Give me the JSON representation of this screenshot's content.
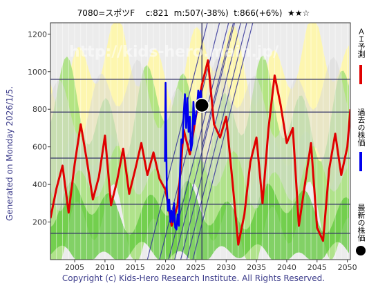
{
  "header": {
    "code_name": "7080=スポツF",
    "current": "c:821",
    "mid": "m:507(-38%)",
    "target": "t:866(+6%)",
    "rating": "★★☆"
  },
  "sidebar": {
    "generated": "Generated on Monday 2026/1/5."
  },
  "legend": {
    "items": [
      {
        "label": "ＡＩ予測",
        "color": "#e00000"
      },
      {
        "label": "過去の株価",
        "color": "#0000ee"
      },
      {
        "label": "最新の株価",
        "color": "#000000"
      }
    ]
  },
  "watermark": {
    "text": "http://kids-hero.main.jp/"
  },
  "footer": {
    "copyright": "Copyright (c) Kids-Hero Research Institute. All Rights Reserved."
  },
  "chart_data": {
    "type": "line",
    "xlim": [
      2001,
      2050.5
    ],
    "ylim": [
      0,
      1260
    ],
    "x_ticks": [
      2005,
      2010,
      2015,
      2020,
      2025,
      2030,
      2035,
      2040,
      2045,
      2050
    ],
    "y_ticks": [
      200,
      400,
      600,
      800,
      1000,
      1200
    ],
    "horizontal_levels": [
      140,
      295,
      540,
      785,
      960
    ],
    "current_marker": {
      "x": 2026.0,
      "y": 821
    },
    "series": [
      {
        "name": "ＡＩ予測",
        "color": "#e00000",
        "points": [
          [
            2001,
            220
          ],
          [
            2002,
            380
          ],
          [
            2003,
            500
          ],
          [
            2004,
            250
          ],
          [
            2005,
            510
          ],
          [
            2006,
            720
          ],
          [
            2007,
            530
          ],
          [
            2008,
            320
          ],
          [
            2009,
            440
          ],
          [
            2010,
            660
          ],
          [
            2011,
            290
          ],
          [
            2012,
            420
          ],
          [
            2013,
            590
          ],
          [
            2014,
            350
          ],
          [
            2015,
            480
          ],
          [
            2016,
            620
          ],
          [
            2017,
            450
          ],
          [
            2018,
            570
          ],
          [
            2019,
            430
          ],
          [
            2020,
            370
          ],
          [
            2021,
            180
          ],
          [
            2022,
            290
          ],
          [
            2023,
            690
          ],
          [
            2024,
            560
          ],
          [
            2025,
            760
          ],
          [
            2026,
            930
          ],
          [
            2027,
            1060
          ],
          [
            2028,
            720
          ],
          [
            2029,
            650
          ],
          [
            2030,
            760
          ],
          [
            2031,
            430
          ],
          [
            2032,
            80
          ],
          [
            2033,
            240
          ],
          [
            2034,
            520
          ],
          [
            2035,
            650
          ],
          [
            2036,
            300
          ],
          [
            2037,
            700
          ],
          [
            2038,
            980
          ],
          [
            2039,
            820
          ],
          [
            2040,
            620
          ],
          [
            2041,
            700
          ],
          [
            2042,
            180
          ],
          [
            2043,
            400
          ],
          [
            2044,
            620
          ],
          [
            2045,
            170
          ],
          [
            2046,
            100
          ],
          [
            2047,
            480
          ],
          [
            2048,
            670
          ],
          [
            2049,
            450
          ],
          [
            2050,
            600
          ],
          [
            2050.5,
            800
          ]
        ]
      },
      {
        "name": "過去の株価",
        "color": "#0000ee",
        "points": [
          [
            2019.9,
            520
          ],
          [
            2020.0,
            940
          ],
          [
            2020.2,
            380
          ],
          [
            2020.4,
            260
          ],
          [
            2020.6,
            320
          ],
          [
            2020.8,
            200
          ],
          [
            2021.0,
            260
          ],
          [
            2021.2,
            200
          ],
          [
            2021.4,
            300
          ],
          [
            2021.6,
            170
          ],
          [
            2021.8,
            160
          ],
          [
            2022.0,
            240
          ],
          [
            2022.2,
            180
          ],
          [
            2022.4,
            480
          ],
          [
            2022.6,
            640
          ],
          [
            2022.8,
            620
          ],
          [
            2023.0,
            780
          ],
          [
            2023.2,
            880
          ],
          [
            2023.4,
            700
          ],
          [
            2023.6,
            860
          ],
          [
            2023.8,
            680
          ],
          [
            2024.0,
            760
          ],
          [
            2024.2,
            580
          ],
          [
            2024.4,
            620
          ],
          [
            2024.6,
            840
          ],
          [
            2024.8,
            720
          ],
          [
            2025.0,
            760
          ],
          [
            2025.2,
            820
          ],
          [
            2025.4,
            900
          ],
          [
            2025.6,
            860
          ],
          [
            2025.8,
            900
          ],
          [
            2026.0,
            821
          ]
        ]
      }
    ]
  }
}
